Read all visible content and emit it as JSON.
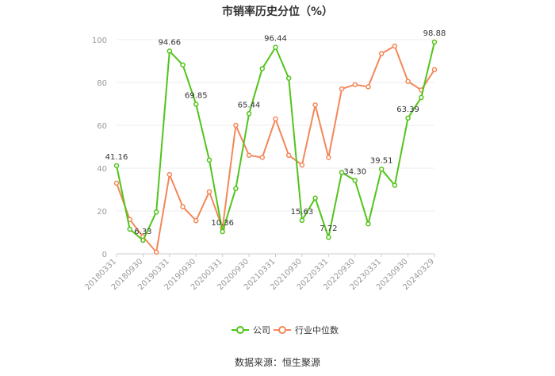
{
  "chart_data": {
    "type": "line",
    "title": "市销率历史分位（%）",
    "ylim": [
      0,
      100
    ],
    "yticks": [
      0,
      20,
      40,
      60,
      80,
      100
    ],
    "grid": true,
    "legend_position": "bottom",
    "x": [
      "20180331",
      "20180630",
      "20180930",
      "20181231",
      "20190331",
      "20190630",
      "20190930",
      "20191231",
      "20200331",
      "20200630",
      "20200930",
      "20201231",
      "20210331",
      "20210630",
      "20210930",
      "20211231",
      "20220331",
      "20220630",
      "20220930",
      "20221231",
      "20230331",
      "20230630",
      "20230930",
      "20231231",
      "20240329"
    ],
    "x_tick_labels": [
      "20180331",
      "20180930",
      "20190331",
      "20190930",
      "20200331",
      "20200930",
      "20210331",
      "20210930",
      "20220331",
      "20220930",
      "20230331",
      "20230930",
      "20240329"
    ],
    "series": [
      {
        "name": "公司",
        "color": "#52c41a",
        "values": [
          41.16,
          11.5,
          6.33,
          19.5,
          94.66,
          88.2,
          69.85,
          43.8,
          10.36,
          30.5,
          65.44,
          86.5,
          96.44,
          82.0,
          15.63,
          26.0,
          7.72,
          38.0,
          34.3,
          14.0,
          39.51,
          32.0,
          63.39,
          73.0,
          98.88
        ]
      },
      {
        "name": "行业中位数",
        "color": "#f4875a",
        "values": [
          33.0,
          16.0,
          8.0,
          0.8,
          37.0,
          22.0,
          15.5,
          29.0,
          12.0,
          60.0,
          46.0,
          45.0,
          63.0,
          46.0,
          41.5,
          69.5,
          45.0,
          77.0,
          79.0,
          78.0,
          93.5,
          97.0,
          80.5,
          76.5,
          86.0
        ]
      }
    ],
    "data_labels": [
      {
        "series": 0,
        "index": 0,
        "text": "41.16"
      },
      {
        "series": 0,
        "index": 2,
        "text": "6.33"
      },
      {
        "series": 0,
        "index": 4,
        "text": "94.66"
      },
      {
        "series": 0,
        "index": 6,
        "text": "69.85"
      },
      {
        "series": 0,
        "index": 8,
        "text": "10.36"
      },
      {
        "series": 0,
        "index": 10,
        "text": "65.44"
      },
      {
        "series": 0,
        "index": 12,
        "text": "96.44"
      },
      {
        "series": 0,
        "index": 14,
        "text": "15.63"
      },
      {
        "series": 0,
        "index": 16,
        "text": "7.72"
      },
      {
        "series": 0,
        "index": 18,
        "text": "34.30"
      },
      {
        "series": 0,
        "index": 20,
        "text": "39.51"
      },
      {
        "series": 0,
        "index": 22,
        "text": "63.39"
      },
      {
        "series": 0,
        "index": 24,
        "text": "98.88"
      }
    ]
  },
  "source_text": "数据来源：恒生聚源"
}
